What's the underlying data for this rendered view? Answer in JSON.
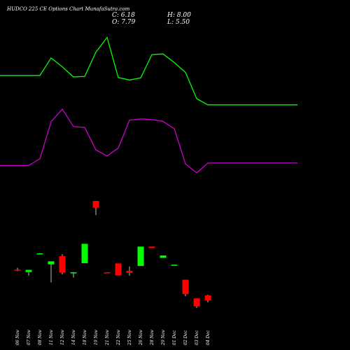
{
  "chart_data": {
    "type": "candlestick",
    "title": "HUDCO 225 CE Options Chart MunafaSutra.com",
    "ohlc": {
      "close_label": "C:",
      "close": "6.18",
      "open_label": "O:",
      "open": "7.79",
      "high_label": "H:",
      "high": "8.00",
      "low_label": "L:",
      "low": "5.50"
    },
    "colors": {
      "up": "#00ff00",
      "down": "#ff0000",
      "upper_line": "#00ff00",
      "lower_line": "#cc00cc",
      "background": "#000000"
    },
    "categories": [
      "06 Nov",
      "07 Nov",
      "08 Nov",
      "11 Nov",
      "12 Nov",
      "14 Nov",
      "18 Nov",
      "19 Nov",
      "21 Nov",
      "22 Nov",
      "25 Nov",
      "26 Nov",
      "28 Nov",
      "29 Nov",
      "01 Dec",
      "02 Dec",
      "03 Dec",
      "04 Dec"
    ],
    "candles": [
      {
        "open": 16.2,
        "high": 16.8,
        "low": 15.7,
        "close": 15.9
      },
      {
        "open": 15.4,
        "high": 16.1,
        "low": 14.2,
        "close": 16.1
      },
      {
        "open": 21.5,
        "high": 21.6,
        "low": 21.4,
        "close": 21.5
      },
      {
        "open": 17.9,
        "high": 18.9,
        "low": 12.0,
        "close": 18.9
      },
      {
        "open": 20.6,
        "high": 21.2,
        "low": 14.6,
        "close": 15.2
      },
      {
        "open": 15.3,
        "high": 15.4,
        "low": 13.6,
        "close": 15.3
      },
      {
        "open": 18.3,
        "high": 24.6,
        "low": 18.3,
        "close": 24.6
      },
      {
        "open": 38.6,
        "high": 38.6,
        "low": 34.0,
        "close": 36.4
      },
      {
        "open": 15.3,
        "high": 15.3,
        "low": 15.1,
        "close": 15.1
      },
      {
        "open": 18.2,
        "high": 18.2,
        "low": 14.3,
        "close": 14.3
      },
      {
        "open": 15.8,
        "high": 17.2,
        "low": 14.2,
        "close": 15.1
      },
      {
        "open": 17.4,
        "high": 23.7,
        "low": 17.4,
        "close": 23.7
      },
      {
        "open": 23.7,
        "high": 23.7,
        "low": 23.2,
        "close": 23.2
      },
      {
        "open": 20.0,
        "high": 20.8,
        "low": 20.0,
        "close": 20.8
      },
      {
        "open": 17.8,
        "high": 17.8,
        "low": 17.6,
        "close": 17.8
      },
      {
        "open": 12.9,
        "high": 12.9,
        "low": 7.5,
        "close": 8.2
      },
      {
        "open": 6.8,
        "high": 6.8,
        "low": 3.7,
        "close": 4.2
      },
      {
        "open": 7.79,
        "high": 8.0,
        "low": 5.5,
        "close": 6.18
      }
    ],
    "upper_line": [
      79.6,
      79.6,
      79.6,
      85.3,
      82.4,
      79.1,
      79.3,
      87.2,
      92.0,
      78.9,
      78.1,
      78.8,
      86.4,
      86.6,
      83.8,
      80.6,
      72.0,
      70.0
    ],
    "lower_line": [
      50.2,
      50.2,
      52.4,
      64.5,
      68.6,
      62.9,
      62.6,
      55.3,
      53.3,
      55.9,
      65.0,
      65.4,
      65.2,
      64.6,
      62.2,
      50.7,
      47.8,
      51.0
    ],
    "ylim": [
      0,
      96
    ]
  }
}
